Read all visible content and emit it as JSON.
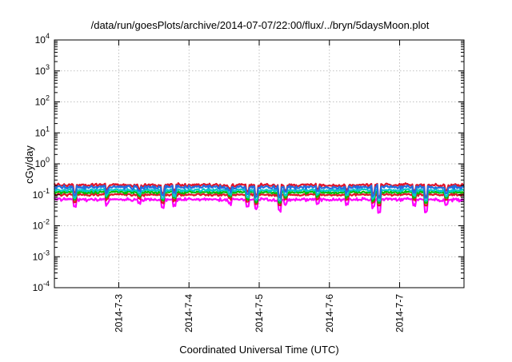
{
  "chart_data": {
    "type": "line",
    "title": "/data/run/goesPlots/archive/2014-07-07/22:00/flux/../bryn/5daysMoon.plot",
    "xlabel": "Coordinated Universal Time (UTC)",
    "ylabel": "cGy/day",
    "y_scale": "log",
    "ylim": [
      0.0001,
      10000
    ],
    "y_ticks": [
      {
        "value": 0.0001,
        "base": "10",
        "exp": "-4"
      },
      {
        "value": 0.001,
        "base": "10",
        "exp": "-3"
      },
      {
        "value": 0.01,
        "base": "10",
        "exp": "-2"
      },
      {
        "value": 0.1,
        "base": "10",
        "exp": "-1"
      },
      {
        "value": 1,
        "base": "10",
        "exp": "0"
      },
      {
        "value": 10,
        "base": "10",
        "exp": "1"
      },
      {
        "value": 100,
        "base": "10",
        "exp": "2"
      },
      {
        "value": 1000,
        "base": "10",
        "exp": "3"
      },
      {
        "value": 10000,
        "base": "10",
        "exp": "4"
      }
    ],
    "xlim": [
      "2014-07-02 02:00",
      "2014-07-07 22:00"
    ],
    "x_ticks": [
      {
        "value": "2014-07-03 00:00",
        "label": "2014-7-3"
      },
      {
        "value": "2014-07-04 00:00",
        "label": "2014-7-4"
      },
      {
        "value": "2014-07-05 00:00",
        "label": "2014-7-5"
      },
      {
        "value": "2014-07-06 00:00",
        "label": "2014-7-6"
      },
      {
        "value": "2014-07-07 00:00",
        "label": "2014-7-7"
      }
    ],
    "grid": true,
    "legend": "none",
    "series": [
      {
        "color": "#ff00ff",
        "level": 0.07,
        "minimum": 0.026,
        "amplitude": 0.16
      },
      {
        "color": "#e0142a",
        "level": 0.1,
        "minimum": 0.045,
        "amplitude": 0.12
      },
      {
        "color": "#00c000",
        "level": 0.12,
        "minimum": 0.055,
        "amplitude": 0.12
      },
      {
        "color": "#00c8c8",
        "level": 0.14,
        "minimum": 0.065,
        "amplitude": 0.13
      },
      {
        "color": "#e0142a",
        "level": 0.205,
        "minimum": 0.09,
        "amplitude": 0.16
      },
      {
        "color": "#1f6fe0",
        "level": 0.175,
        "minimum": 0.08,
        "amplitude": 0.17
      }
    ],
    "dips": [
      {
        "time": "2014-07-02 09:00",
        "factor": 0.6
      },
      {
        "time": "2014-07-02 20:00",
        "factor": 0.7
      },
      {
        "time": "2014-07-03 07:00",
        "factor": 0.75
      },
      {
        "time": "2014-07-03 15:00",
        "factor": 0.55
      },
      {
        "time": "2014-07-03 19:00",
        "factor": 0.65
      },
      {
        "time": "2014-07-04 14:00",
        "factor": 0.75
      },
      {
        "time": "2014-07-04 20:00",
        "factor": 0.6
      },
      {
        "time": "2014-07-04 23:00",
        "factor": 0.5
      },
      {
        "time": "2014-07-05 07:00",
        "factor": 0.45
      },
      {
        "time": "2014-07-05 09:00",
        "factor": 0.7
      },
      {
        "time": "2014-07-05 20:00",
        "factor": 0.75
      },
      {
        "time": "2014-07-06 06:00",
        "factor": 0.7
      },
      {
        "time": "2014-07-06 15:00",
        "factor": 0.55
      },
      {
        "time": "2014-07-06 17:00",
        "factor": 0.38
      },
      {
        "time": "2014-07-07 05:00",
        "factor": 0.7
      },
      {
        "time": "2014-07-07 09:00",
        "factor": 0.4
      },
      {
        "time": "2014-07-07 16:00",
        "factor": 0.7
      }
    ]
  }
}
